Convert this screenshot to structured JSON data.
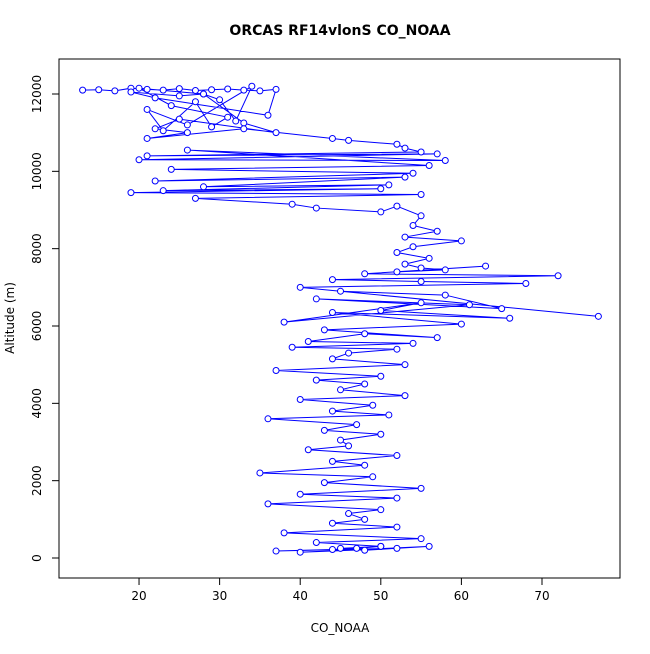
{
  "chart_data": {
    "type": "scatter",
    "title": "ORCAS RF14vlonS CO_NOAA",
    "x_label": "CO_NOAA",
    "y_label": "Altitude (m)",
    "color": "#0000ff",
    "connect_points": true,
    "x": [
      13,
      15,
      17,
      19,
      21,
      23,
      25,
      27,
      29,
      31,
      33,
      35,
      37,
      36,
      22,
      19,
      25,
      28,
      30,
      32,
      34,
      26,
      21,
      23,
      27,
      29,
      31,
      24,
      20,
      28,
      33,
      37,
      25,
      22,
      26,
      21,
      33,
      44,
      46,
      52,
      53,
      55,
      21,
      57,
      20,
      58,
      26,
      56,
      24,
      54,
      22,
      53,
      28,
      51,
      23,
      50,
      19,
      55,
      27,
      39,
      42,
      50,
      52,
      55,
      54,
      57,
      53,
      60,
      54,
      52,
      56,
      53,
      55,
      58,
      52,
      63,
      48,
      72,
      44,
      55,
      68,
      40,
      77,
      45,
      58,
      65,
      42,
      61,
      38,
      55,
      50,
      66,
      44,
      60,
      43,
      57,
      48,
      41,
      54,
      39,
      52,
      46,
      44,
      53,
      37,
      50,
      42,
      48,
      45,
      53,
      40,
      49,
      44,
      51,
      36,
      47,
      43,
      50,
      45,
      46,
      41,
      52,
      44,
      48,
      35,
      49,
      43,
      55,
      40,
      52,
      36,
      50,
      46,
      48,
      44,
      52,
      38,
      55,
      42,
      50,
      45,
      48,
      56,
      40,
      52,
      37,
      44,
      50,
      47
    ],
    "values": [
      12100,
      12110,
      12080,
      12150,
      12120,
      12100,
      12140,
      12090,
      12110,
      12130,
      12100,
      12080,
      12120,
      11450,
      11900,
      12050,
      11950,
      12000,
      11850,
      11300,
      12200,
      11200,
      11600,
      11050,
      11800,
      11150,
      11400,
      11700,
      12150,
      12000,
      11250,
      11000,
      11350,
      11100,
      11000,
      10850,
      11100,
      10850,
      10800,
      10700,
      10600,
      10500,
      10400,
      10450,
      10300,
      10280,
      10550,
      10150,
      10050,
      9950,
      9750,
      9850,
      9600,
      9650,
      9500,
      9550,
      9450,
      9400,
      9300,
      9150,
      9050,
      8950,
      9100,
      8850,
      8600,
      8450,
      8300,
      8200,
      8050,
      7900,
      7750,
      7600,
      7500,
      7450,
      7400,
      7550,
      7350,
      7300,
      7200,
      7150,
      7100,
      7000,
      6250,
      6900,
      6800,
      6450,
      6700,
      6550,
      6100,
      6600,
      6400,
      6200,
      6350,
      6050,
      5900,
      5700,
      5800,
      5600,
      5550,
      5450,
      5400,
      5300,
      5150,
      5000,
      4850,
      4700,
      4600,
      4500,
      4350,
      4200,
      4100,
      3950,
      3800,
      3700,
      3600,
      3450,
      3300,
      3200,
      3050,
      2900,
      2800,
      2650,
      2500,
      2400,
      2200,
      2100,
      1950,
      1800,
      1650,
      1550,
      1400,
      1250,
      1150,
      1000,
      900,
      800,
      650,
      500,
      400,
      300,
      250,
      200,
      300,
      150,
      250,
      180,
      220,
      300,
      250
    ],
    "xlim": [
      10.07,
      79.68
    ],
    "ylim": [
      -517,
      12905
    ],
    "xticks": [
      20,
      30,
      40,
      50,
      60,
      70
    ],
    "yticks": [
      0,
      2000,
      4000,
      6000,
      8000,
      10000,
      12000
    ]
  }
}
